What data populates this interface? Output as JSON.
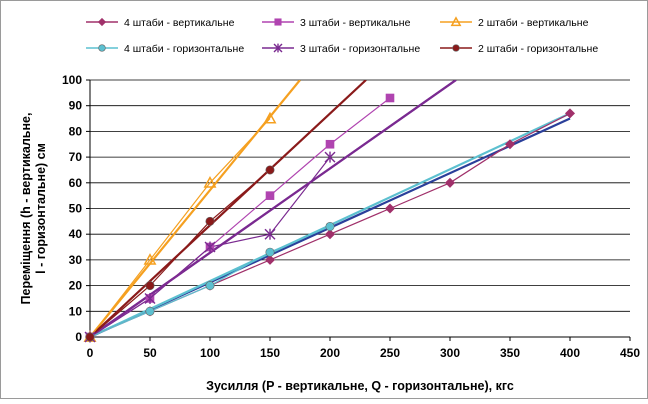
{
  "chart_data": {
    "type": "scatter",
    "title": "",
    "xlabel": "Зусилля (P - вертикальне, Q - горизонтальне), кгс",
    "ylabel_lines": [
      "Переміщення (h - вертикальне,",
      "l - горизонтальне) см"
    ],
    "xlim": [
      0,
      450
    ],
    "ylim": [
      0,
      100
    ],
    "x_ticks": [
      0,
      50,
      100,
      150,
      200,
      250,
      300,
      350,
      400,
      450
    ],
    "y_ticks": [
      0,
      10,
      20,
      30,
      40,
      50,
      60,
      70,
      80,
      90,
      100
    ],
    "grid": true,
    "legend_position": "top",
    "series": [
      {
        "name": "4 штаби - вертикальне",
        "color": "#a0306a",
        "marker": "diamond",
        "x": [
          0,
          50,
          100,
          150,
          200,
          250,
          300,
          350,
          400
        ],
        "y": [
          0,
          10,
          20,
          30,
          40,
          50,
          60,
          75,
          87
        ],
        "trend_color": "#2a3f9a",
        "trend": [
          [
            0,
            0
          ],
          [
            400,
            85
          ]
        ]
      },
      {
        "name": "3 штаби - вертикальне",
        "color": "#b044b0",
        "marker": "square",
        "x": [
          0,
          50,
          100,
          150,
          200,
          250
        ],
        "y": [
          0,
          15,
          35,
          55,
          75,
          93
        ],
        "trend_color": "#8a3aa8",
        "trend": [
          [
            0,
            0
          ],
          [
            305,
            100
          ]
        ]
      },
      {
        "name": "2 штаби - вертикальне",
        "color": "#f5a020",
        "marker": "triangle",
        "x": [
          0,
          50,
          100,
          150
        ],
        "y": [
          0,
          30,
          60,
          85
        ],
        "trend_color": "#f5a020",
        "trend": [
          [
            0,
            0
          ],
          [
            175,
            100
          ]
        ]
      },
      {
        "name": "4 штаби - горизонтальне",
        "color": "#5cc0d0",
        "marker": "circle",
        "x": [
          0,
          50,
          100,
          150,
          200
        ],
        "y": [
          0,
          10,
          20,
          33,
          43
        ],
        "trend_color": "#5cc0d0",
        "trend": [
          [
            0,
            0
          ],
          [
            400,
            87
          ]
        ]
      },
      {
        "name": "3 штаби - горизонтальне",
        "color": "#7a2a90",
        "marker": "star",
        "x": [
          0,
          50,
          100,
          150,
          200
        ],
        "y": [
          0,
          15,
          35,
          40,
          70
        ],
        "trend_color": "#7a2a90",
        "trend": [
          [
            0,
            0
          ],
          [
            305,
            100
          ]
        ]
      },
      {
        "name": "2 штаби - горизонтальне",
        "color": "#8a1a1a",
        "marker": "circle",
        "x": [
          0,
          50,
          100,
          150
        ],
        "y": [
          0,
          20,
          45,
          65
        ],
        "trend_color": "#8a1a1a",
        "trend": [
          [
            0,
            0
          ],
          [
            230,
            100
          ]
        ]
      }
    ]
  }
}
